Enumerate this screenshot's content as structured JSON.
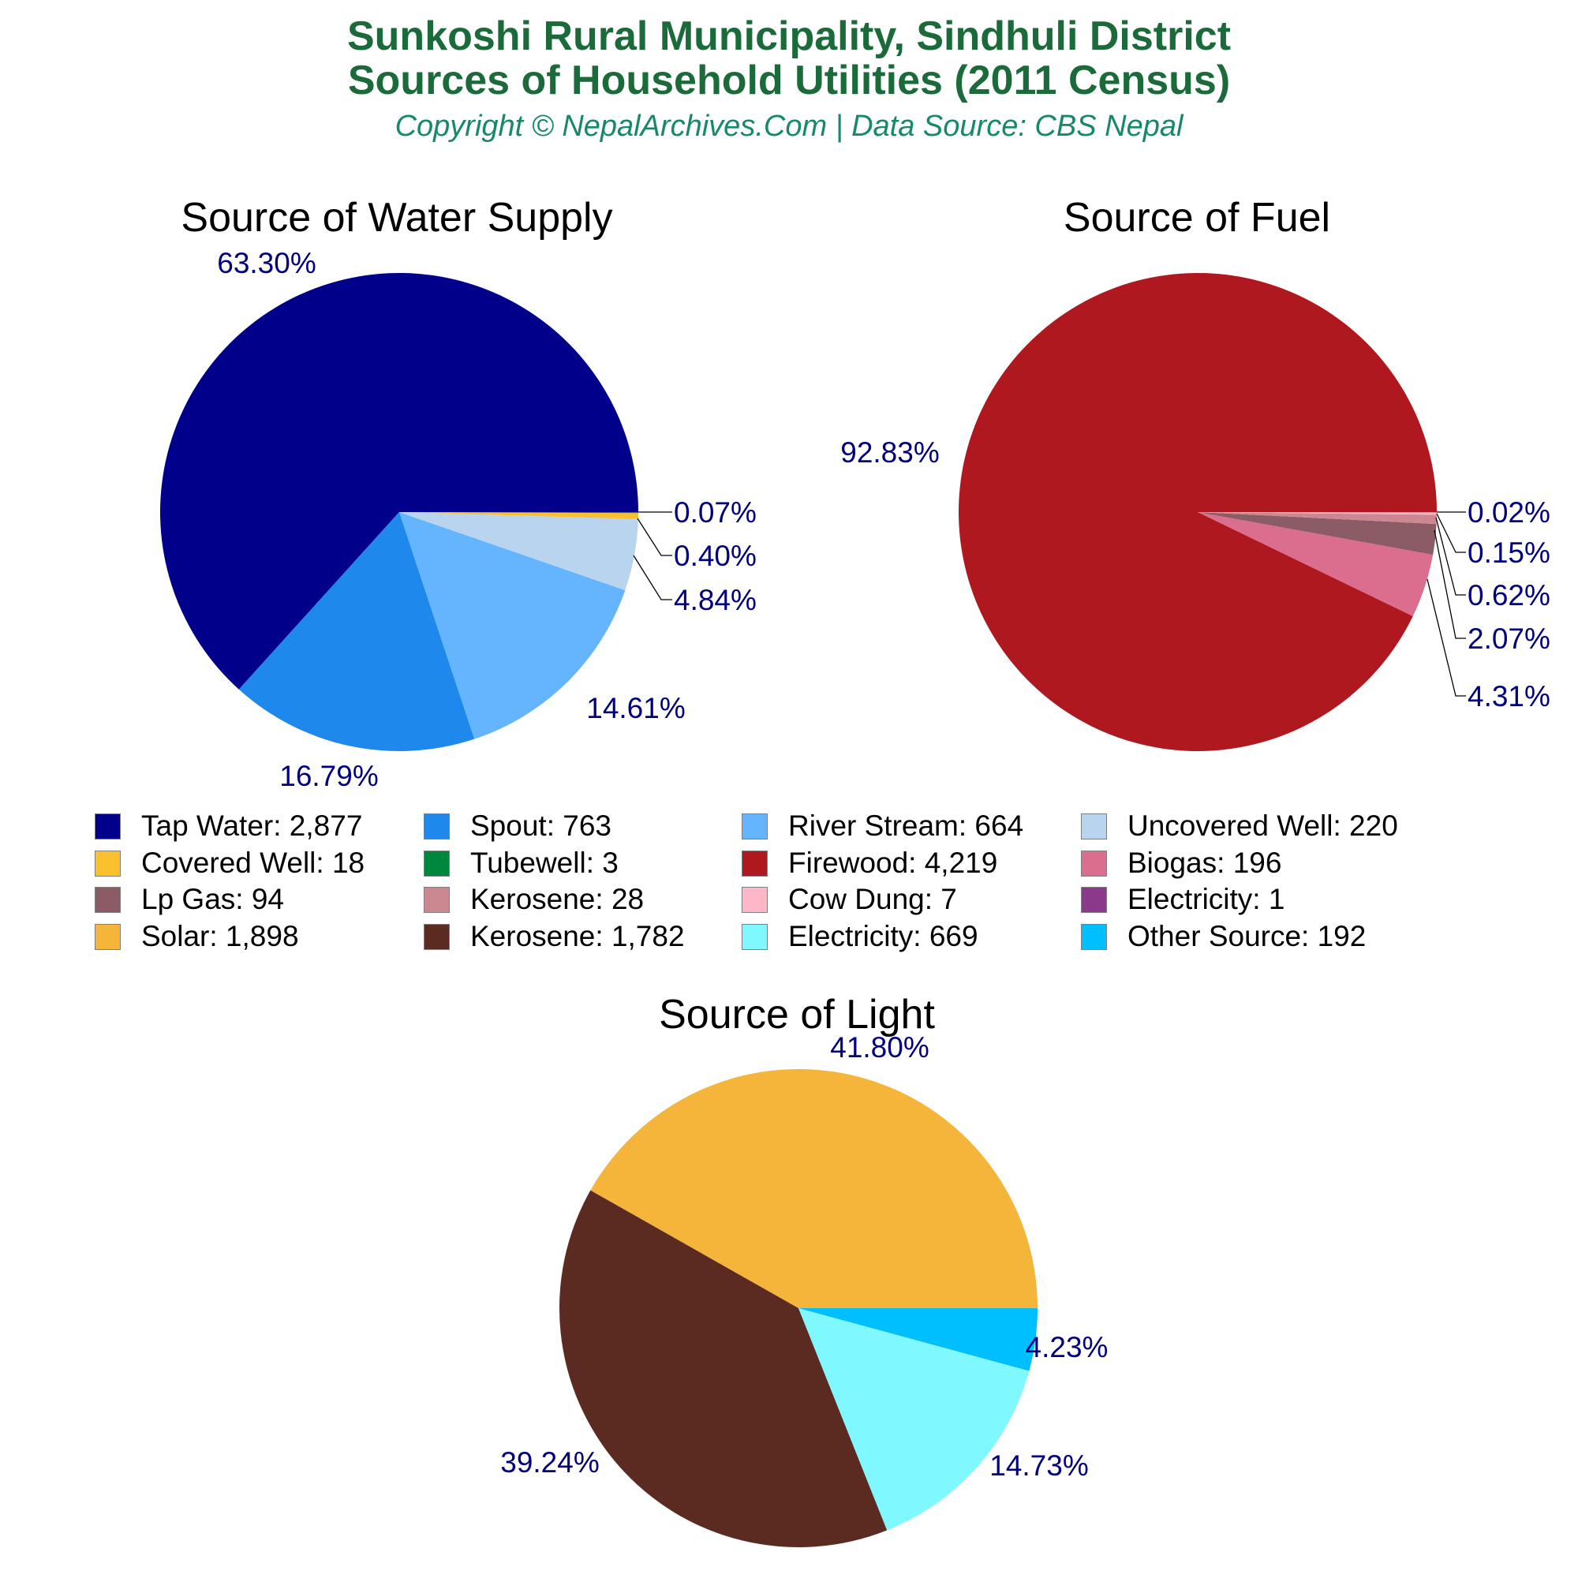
{
  "header": {
    "title_line1": "Sunkoshi Rural Municipality, Sindhuli District",
    "title_line2": "Sources of Household Utilities (2011 Census)",
    "copyright": "Copyright © NepalArchives.Com | Data Source: CBS Nepal"
  },
  "colors": {
    "title": "#1b6b3a",
    "copyright": "#16896a",
    "percent_label": "#00007f"
  },
  "chart_data": [
    {
      "type": "pie",
      "title": "Source of Water Supply",
      "categories": [
        "Tap Water",
        "Covered Well",
        "Tubewell",
        "Uncovered Well",
        "River Stream",
        "Spout"
      ],
      "values": [
        2877,
        18,
        3,
        220,
        664,
        763
      ],
      "percent_labels": [
        "63.30%",
        "0.40%",
        "0.07%",
        "4.84%",
        "14.61%",
        "16.79%"
      ],
      "colors": [
        "#00008b",
        "#fbc02d",
        "#00873e",
        "#b8d4ef",
        "#64b5fd",
        "#1e88ec"
      ]
    },
    {
      "type": "pie",
      "title": "Source of Fuel",
      "categories": [
        "Firewood",
        "Cow Dung",
        "Electricity",
        "Kerosene",
        "Lp Gas",
        "Biogas"
      ],
      "values": [
        4219,
        7,
        1,
        28,
        94,
        196
      ],
      "percent_labels": [
        "92.83%",
        "0.15%",
        "0.02%",
        "0.62%",
        "2.07%",
        "4.31%"
      ],
      "colors": [
        "#b01820",
        "#ffb6c6",
        "#8b3a8b",
        "#cc8890",
        "#8b5c66",
        "#db6e8e"
      ]
    },
    {
      "type": "pie",
      "title": "Source of Light",
      "categories": [
        "Solar",
        "Kerosene",
        "Electricity",
        "Other Source"
      ],
      "values": [
        1898,
        1782,
        669,
        192
      ],
      "percent_labels": [
        "41.80%",
        "39.24%",
        "14.73%",
        "4.23%"
      ],
      "colors": [
        "#f5b53a",
        "#5b2b21",
        "#80f8ff",
        "#00bfff"
      ]
    }
  ],
  "charts": {
    "water": {
      "title": "Source of Water Supply",
      "labels": {
        "tap": "63.30%",
        "spout": "16.79%",
        "river": "14.61%",
        "uncovered": "4.84%",
        "covered": "0.40%",
        "tube": "0.07%"
      }
    },
    "fuel": {
      "title": "Source of Fuel",
      "labels": {
        "firewood": "92.83%",
        "electricity": "0.02%",
        "cowdung": "0.15%",
        "kerosene": "0.62%",
        "lpgas": "2.07%",
        "biogas": "4.31%"
      }
    },
    "light": {
      "title": "Source of Light",
      "labels": {
        "solar": "41.80%",
        "kerosene": "39.24%",
        "electricity": "14.73%",
        "other": "4.23%"
      }
    }
  },
  "legend": [
    {
      "label": "Tap Water: 2,877",
      "color": "#00008b"
    },
    {
      "label": "Spout: 763",
      "color": "#1e88ec"
    },
    {
      "label": "River Stream: 664",
      "color": "#64b5fd"
    },
    {
      "label": "Uncovered Well: 220",
      "color": "#b8d4ef"
    },
    {
      "label": "Covered Well: 18",
      "color": "#fbc02d"
    },
    {
      "label": "Tubewell: 3",
      "color": "#00873e"
    },
    {
      "label": "Firewood: 4,219",
      "color": "#b01820"
    },
    {
      "label": "Biogas: 196",
      "color": "#db6e8e"
    },
    {
      "label": "Lp Gas: 94",
      "color": "#8b5c66"
    },
    {
      "label": "Kerosene: 28",
      "color": "#cc8890"
    },
    {
      "label": "Cow Dung: 7",
      "color": "#ffb6c6"
    },
    {
      "label": "Electricity: 1",
      "color": "#8b3a8b"
    },
    {
      "label": "Solar: 1,898",
      "color": "#f5b53a"
    },
    {
      "label": "Kerosene: 1,782",
      "color": "#5b2b21"
    },
    {
      "label": "Electricity: 669",
      "color": "#80f8ff"
    },
    {
      "label": "Other Source: 192",
      "color": "#00bfff"
    }
  ]
}
